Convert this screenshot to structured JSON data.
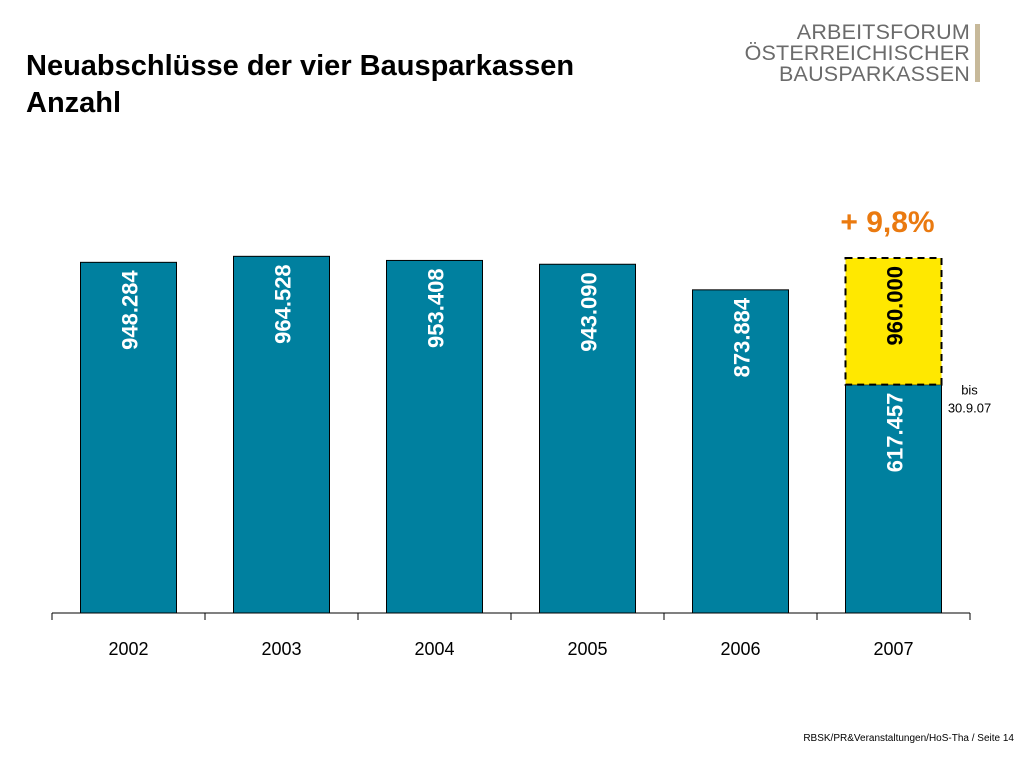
{
  "title": {
    "line1": "Neuabschlüsse der vier Bausparkassen",
    "line2": "Anzahl"
  },
  "logo": {
    "line1": "ARBEITSFORUM",
    "line2": "ÖSTERREICHISCHER",
    "line3": "BAUSPARKASSEN"
  },
  "colors": {
    "bar": "#00809f",
    "forecast_fill": "#ffe800",
    "growth_text": "#ea7a10"
  },
  "chart_data": {
    "type": "bar",
    "categories": [
      "2002",
      "2003",
      "2004",
      "2005",
      "2006",
      "2007"
    ],
    "values": [
      948284,
      964528,
      953408,
      943090,
      873884,
      617457
    ],
    "value_labels": [
      "948.284",
      "964.528",
      "953.408",
      "943.090",
      "873.884",
      "617.457"
    ],
    "forecast": {
      "category": "2007",
      "value": 960000,
      "label": "960.000"
    },
    "growth_annotation": "+ 9,8%",
    "note_line1": "bis",
    "note_line2": "30.9.07",
    "ylim": [
      0,
      960000
    ]
  },
  "footer": "RBSK/PR&Veranstaltungen/HoS-Tha / Seite 14"
}
